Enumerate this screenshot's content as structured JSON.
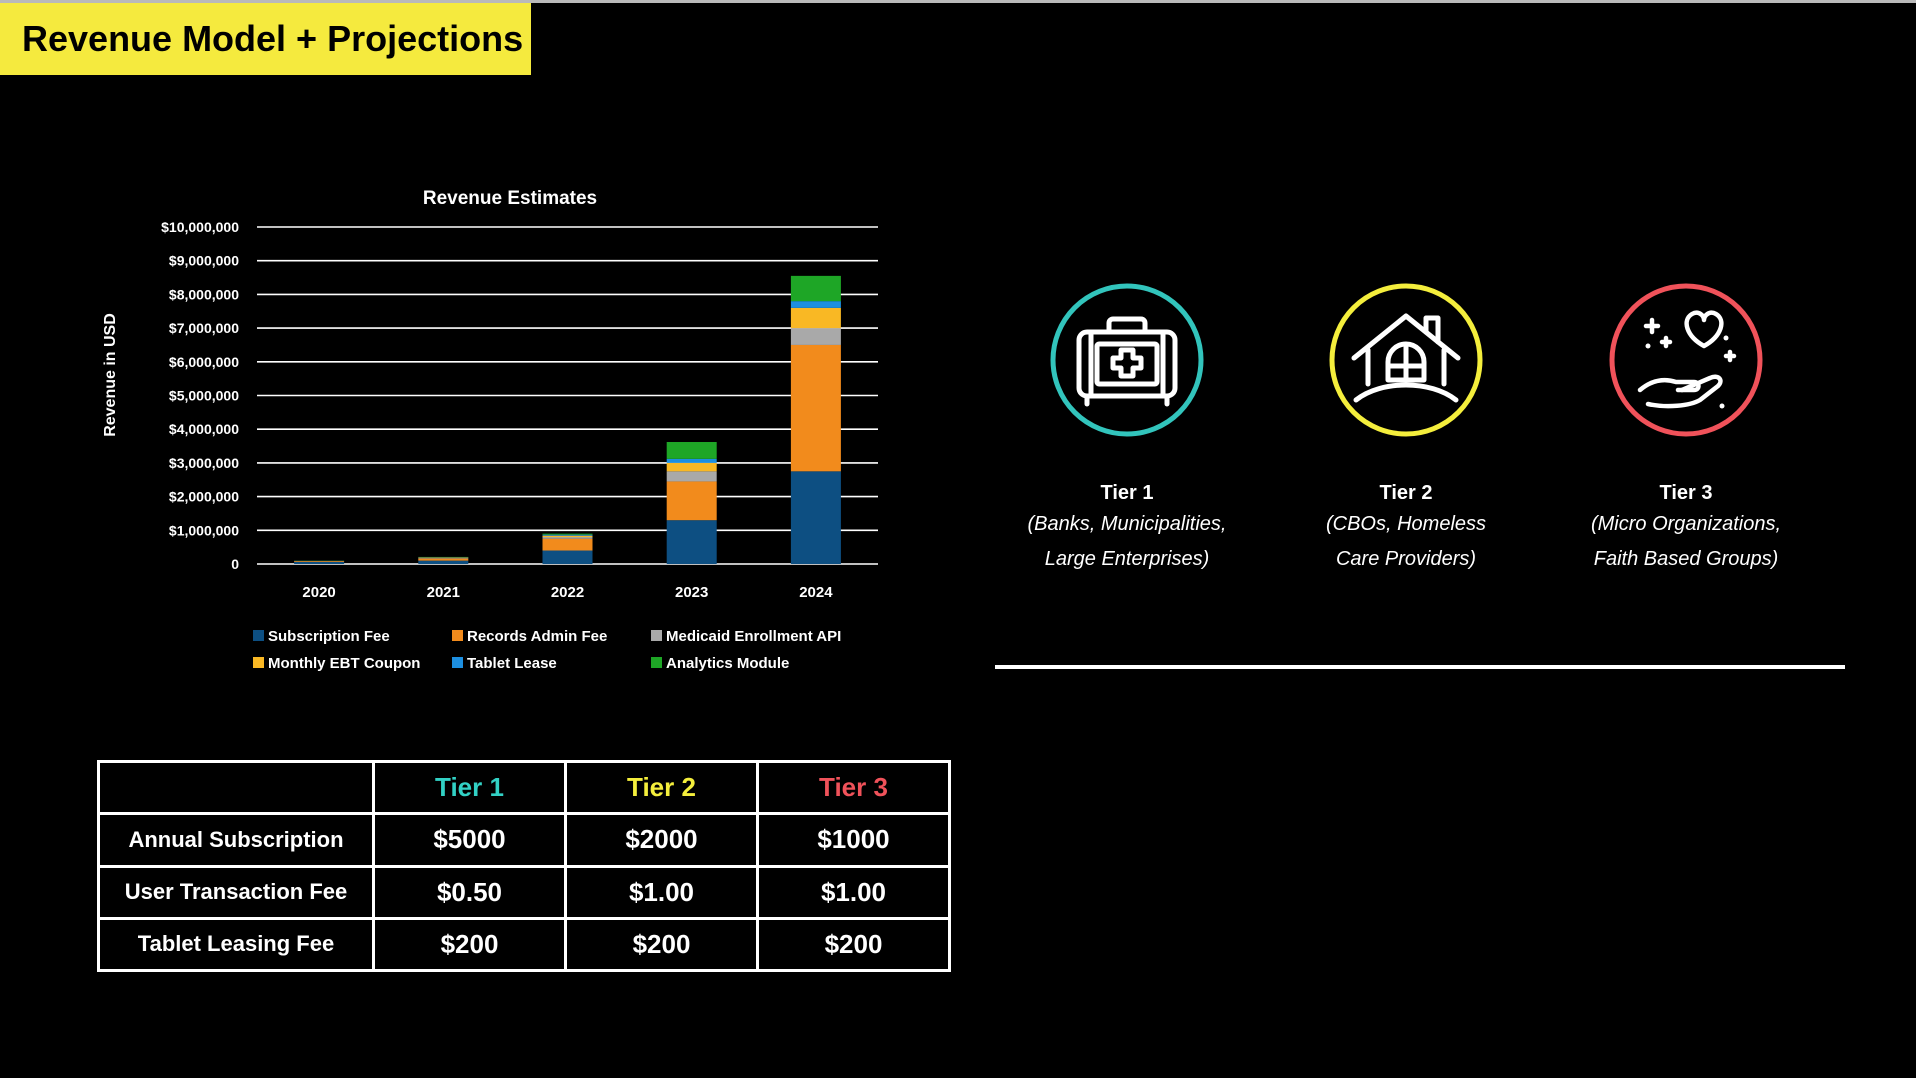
{
  "slide": {
    "title": "Revenue Model + Projections"
  },
  "chart_data": {
    "type": "stacked-bar",
    "title": "Revenue Estimates",
    "xlabel": "",
    "ylabel": "Revenue in USD",
    "ylim": [
      0,
      10000000
    ],
    "grid": true,
    "legend_position": "bottom",
    "yticks": [
      "0",
      "$1,000,000",
      "$2,000,000",
      "$3,000,000",
      "$4,000,000",
      "$5,000,000",
      "$6,000,000",
      "$7,000,000",
      "$8,000,000",
      "$9,000,000",
      "$10,000,000"
    ],
    "categories": [
      "2020",
      "2021",
      "2022",
      "2023",
      "2024"
    ],
    "series": [
      {
        "name": "Subscription Fee",
        "color": "#0d4f82",
        "values": [
          60000,
          100000,
          400000,
          1300000,
          2750000
        ]
      },
      {
        "name": "Records Admin Fee",
        "color": "#f28b1c",
        "values": [
          20000,
          60000,
          350000,
          1150000,
          3750000
        ]
      },
      {
        "name": "Medicaid Enrollment API",
        "color": "#a9a9a9",
        "values": [
          5000,
          15000,
          50000,
          300000,
          500000
        ]
      },
      {
        "name": "Monthly EBT Coupon",
        "color": "#f9b824",
        "values": [
          5000,
          15000,
          40000,
          250000,
          600000
        ]
      },
      {
        "name": "Tablet Lease",
        "color": "#1d8fe0",
        "values": [
          5000,
          10000,
          30000,
          120000,
          200000
        ]
      },
      {
        "name": "Analytics Module",
        "color": "#1ea626",
        "values": [
          5000,
          10000,
          30000,
          500000,
          750000
        ]
      }
    ],
    "legend_rows": [
      [
        "Subscription Fee",
        "Records Admin Fee",
        "Medicaid Enrollment API"
      ],
      [
        "Monthly EBT Coupon",
        "Tablet Lease",
        "Analytics Module"
      ]
    ]
  },
  "tiers": [
    {
      "name": "Tier 1",
      "line1": "(Banks, Municipalities,",
      "line2": "Large Enterprises)",
      "color": "#32c4bc",
      "icon": "medical-kit-icon"
    },
    {
      "name": "Tier 2",
      "line1": "(CBOs, Homeless",
      "line2": "Care Providers)",
      "color": "#f4ee3c",
      "icon": "house-icon"
    },
    {
      "name": "Tier 3",
      "line1": "(Micro Organizations,",
      "line2": "Faith Based Groups)",
      "color": "#f0525a",
      "icon": "heart-hand-icon"
    }
  ],
  "pricing": {
    "headers": [
      "",
      "Tier 1",
      "Tier 2",
      "Tier 3"
    ],
    "rows": [
      {
        "label": "Annual Subscription",
        "values": [
          "$5000",
          "$2000",
          "$1000"
        ]
      },
      {
        "label": "User Transaction Fee",
        "values": [
          "$0.50",
          "$1.00",
          "$1.00"
        ]
      },
      {
        "label": "Tablet Leasing Fee",
        "values": [
          "$200",
          "$200",
          "$200"
        ]
      }
    ]
  }
}
